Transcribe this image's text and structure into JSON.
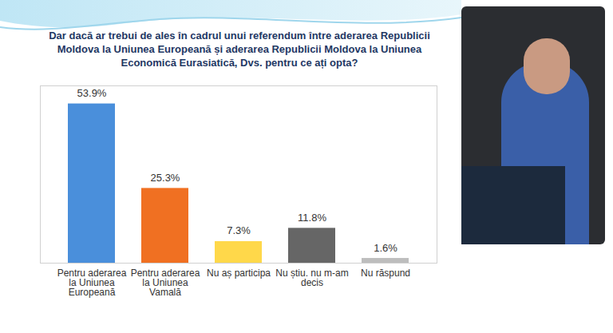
{
  "chart_data": {
    "type": "bar",
    "title": "Dar dacă ar trebui de ales în cadrul unui referendum între aderarea Republicii Moldova la Uniunea Europeană și aderarea Republicii Moldova la Uniunea Economică Eurasiatică, Dvs. pentru ce ați opta?",
    "categories": [
      "Pentru aderarea la Uniunea Europeană",
      "Pentru aderarea la Uniunea Vamală",
      "Nu aș participa",
      "Nu știu. nu m-am decis",
      "Nu răspund"
    ],
    "values": [
      53.9,
      25.3,
      7.3,
      11.8,
      1.6
    ],
    "value_labels": [
      "53.9%",
      "25.3%",
      "7.3%",
      "11.8%",
      "1.6%"
    ],
    "colors": [
      "#4a8fdb",
      "#f07022",
      "#ffd84a",
      "#666666",
      "#bdbdbd"
    ],
    "ylim": [
      0,
      60
    ],
    "grid": false,
    "data_labels": true,
    "tick_labels": "x"
  }
}
